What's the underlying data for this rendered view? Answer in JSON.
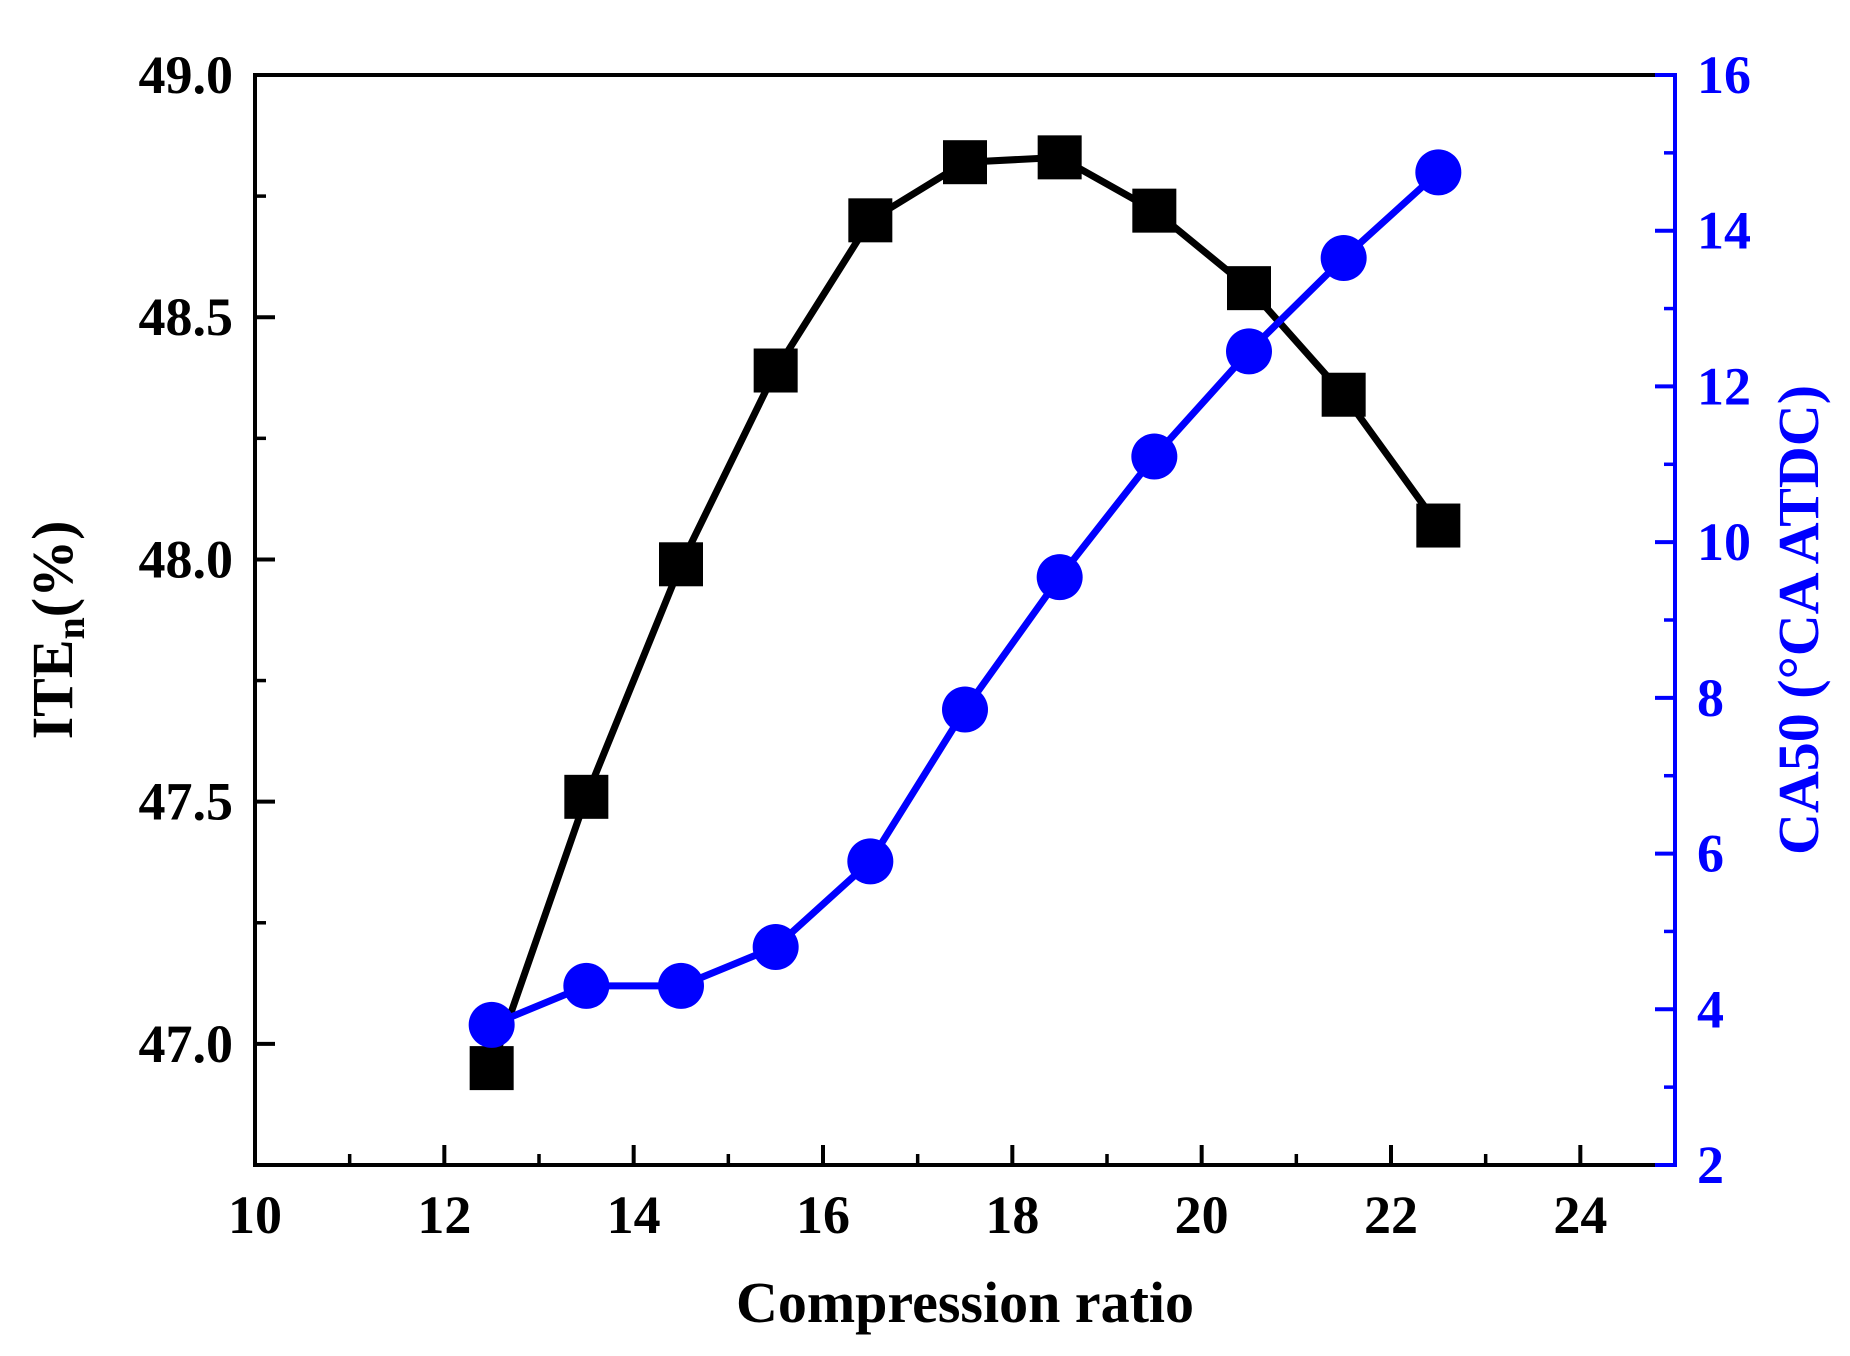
{
  "chart_data": {
    "type": "line",
    "xlabel": "Compression ratio",
    "ylabel_left": {
      "main": "ITE",
      "sub": "n",
      "suffix": "(%)"
    },
    "ylabel_right": "CA50 (°CA ATDC)",
    "xlim": [
      10,
      25
    ],
    "ylim_left": [
      46.75,
      49.0
    ],
    "ylim_right": [
      2,
      16
    ],
    "x_ticks": [
      "10",
      "12",
      "14",
      "16",
      "18",
      "20",
      "22",
      "24"
    ],
    "y_left_ticks": [
      "47.0",
      "47.5",
      "48.0",
      "48.5",
      "49.0"
    ],
    "y_right_ticks": [
      "2",
      "4",
      "6",
      "8",
      "10",
      "12",
      "14",
      "16"
    ],
    "series": [
      {
        "name": "ITEn",
        "axis": "left",
        "marker": "square",
        "color": "#000000",
        "x": [
          12.5,
          13.5,
          14.5,
          15.5,
          16.5,
          17.5,
          18.5,
          19.5,
          20.5,
          21.5,
          22.5
        ],
        "values": [
          46.95,
          47.51,
          47.99,
          48.39,
          48.7,
          48.82,
          48.83,
          48.72,
          48.56,
          48.34,
          48.07
        ]
      },
      {
        "name": "CA50",
        "axis": "right",
        "marker": "circle",
        "color": "#0000ff",
        "x": [
          12.5,
          13.5,
          14.5,
          15.5,
          16.5,
          17.5,
          18.5,
          19.5,
          20.5,
          21.5,
          22.5
        ],
        "values": [
          3.8,
          4.3,
          4.3,
          4.8,
          5.9,
          7.85,
          9.55,
          11.1,
          12.45,
          13.65,
          14.75
        ]
      }
    ]
  }
}
